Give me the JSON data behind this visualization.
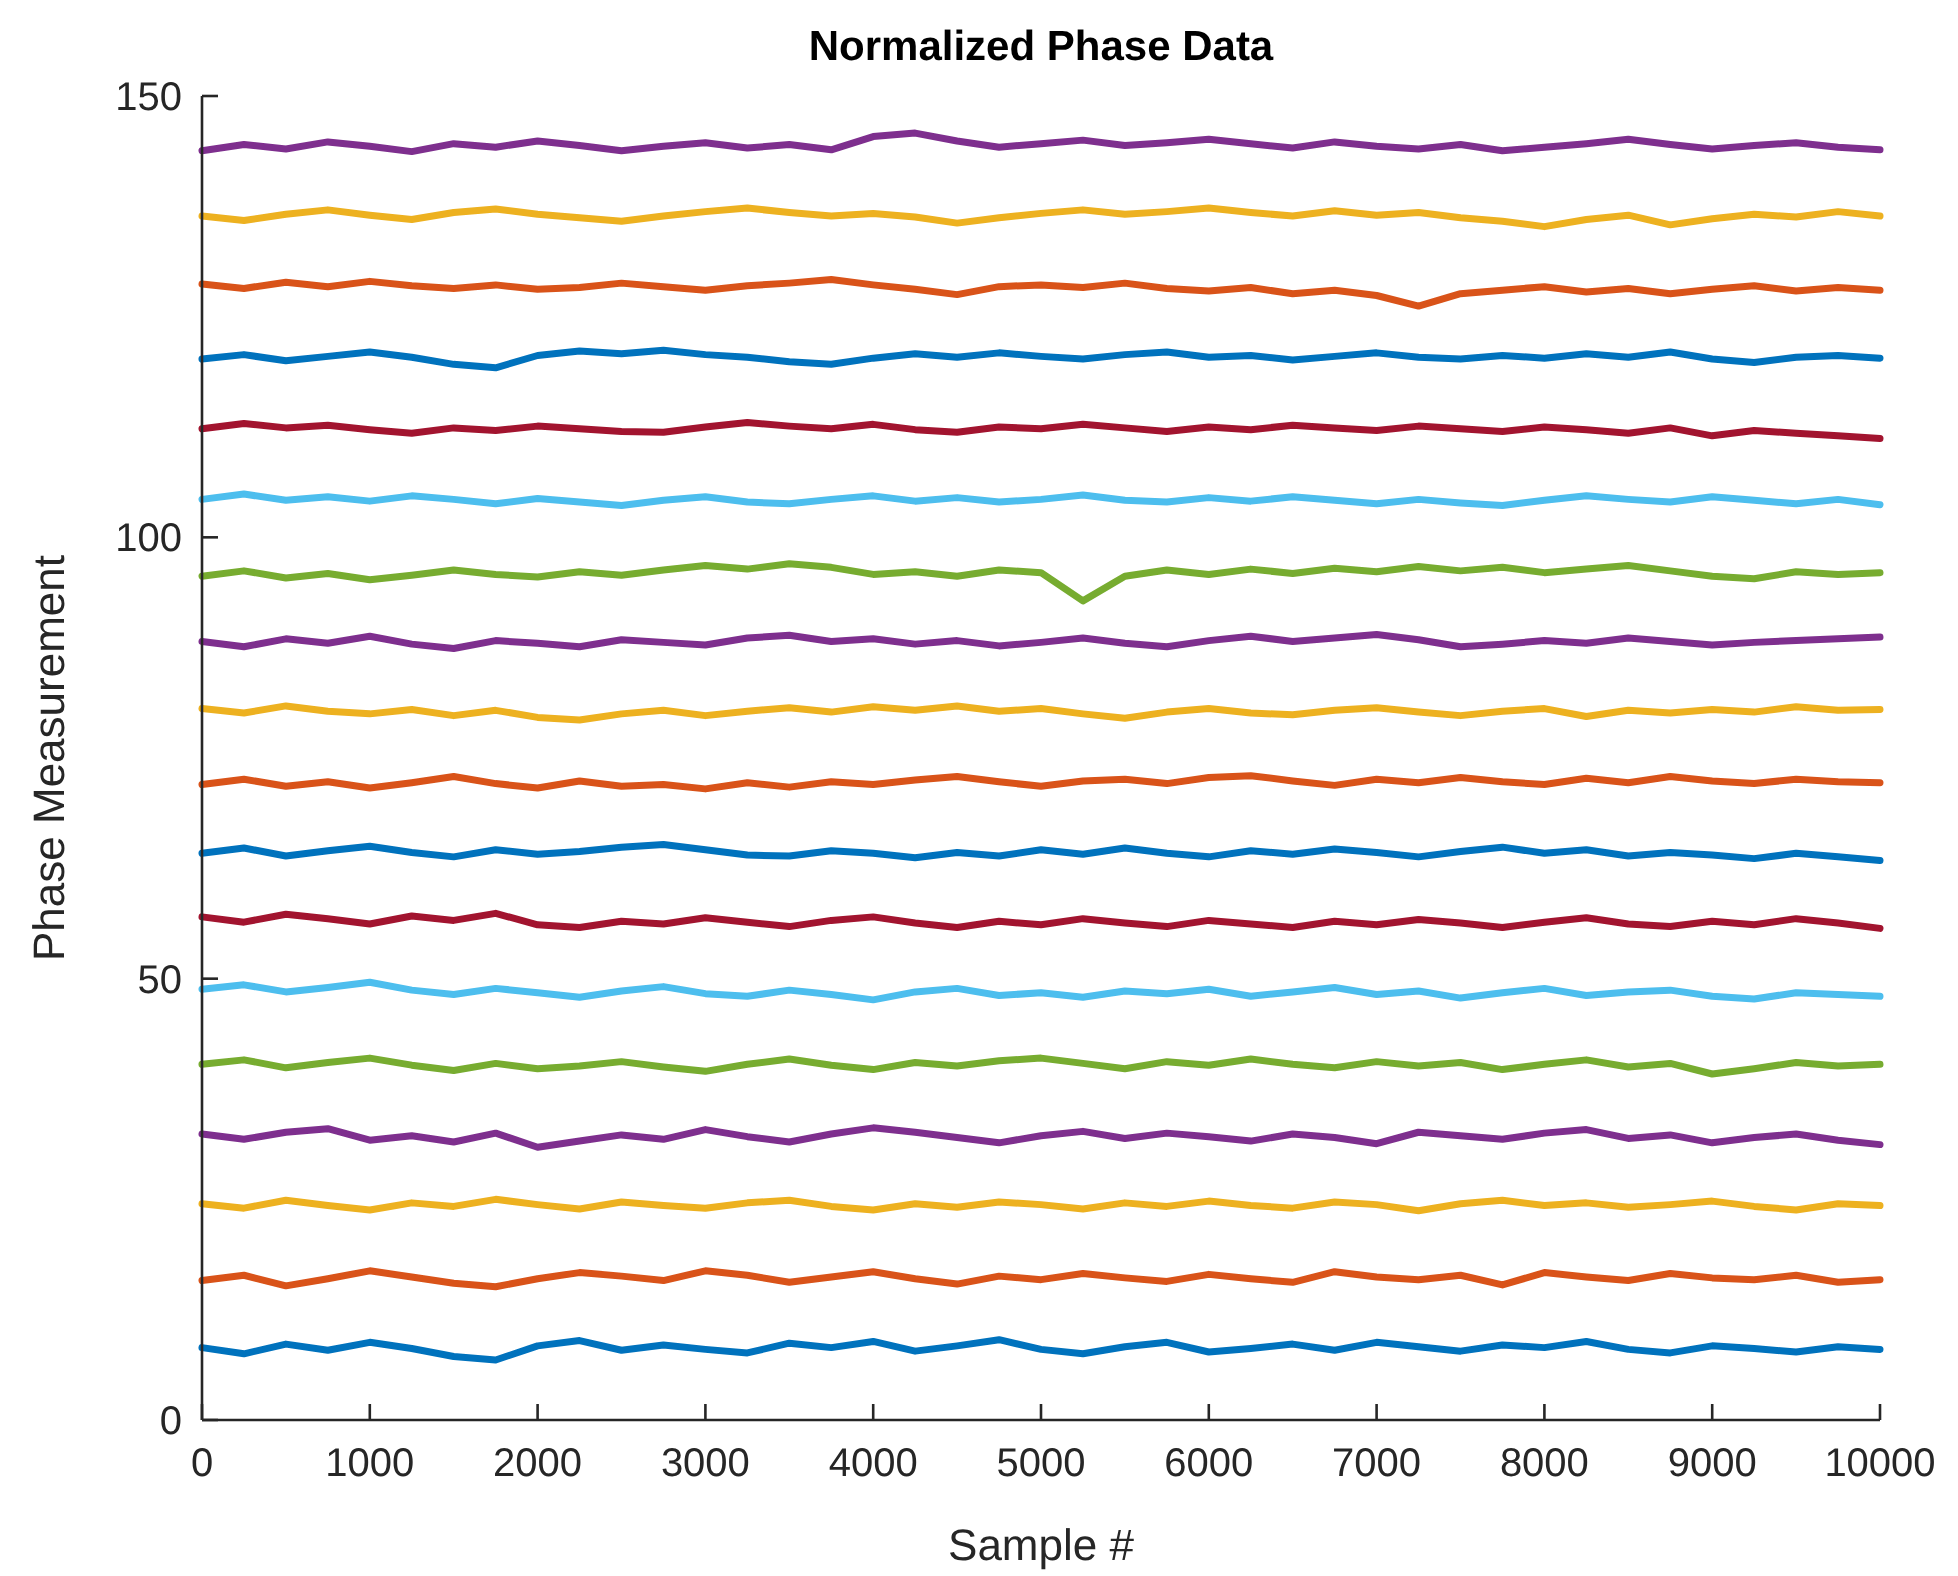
{
  "chart_data": {
    "type": "line",
    "title": "Normalized Phase Data",
    "xlabel": "Sample #",
    "ylabel": "Phase Measurement",
    "x": [
      0,
      250,
      500,
      750,
      1000,
      1250,
      1500,
      1750,
      2000,
      2250,
      2500,
      2750,
      3000,
      3250,
      3500,
      3750,
      4000,
      4250,
      4500,
      4750,
      5000,
      5250,
      5500,
      5750,
      6000,
      6250,
      6500,
      6750,
      7000,
      7250,
      7500,
      7750,
      8000,
      8250,
      8500,
      8750,
      9000,
      9250,
      9500,
      9750,
      10000
    ],
    "xlim": [
      0,
      10000
    ],
    "xticks": [
      0,
      1000,
      2000,
      3000,
      4000,
      5000,
      6000,
      7000,
      8000,
      9000,
      10000
    ],
    "ylim": [
      0,
      150
    ],
    "yticks": [
      0,
      50,
      100,
      150
    ],
    "series": [
      {
        "color": "#0072bd",
        "values": [
          8.2,
          7.5,
          8.6,
          7.9,
          8.8,
          8.1,
          7.2,
          6.8,
          8.4,
          9.0,
          7.9,
          8.5,
          8.0,
          7.6,
          8.7,
          8.2,
          8.9,
          7.8,
          8.4,
          9.1,
          8.0,
          7.5,
          8.3,
          8.8,
          7.7,
          8.1,
          8.6,
          7.9,
          8.8,
          8.3,
          7.8,
          8.5,
          8.2,
          8.9,
          8.0,
          7.6,
          8.4,
          8.1,
          7.7,
          8.3,
          8.0
        ]
      },
      {
        "color": "#d95319",
        "values": [
          15.8,
          16.4,
          15.2,
          16.0,
          16.9,
          16.2,
          15.5,
          15.1,
          16.0,
          16.7,
          16.3,
          15.8,
          16.9,
          16.4,
          15.6,
          16.2,
          16.8,
          16.0,
          15.4,
          16.3,
          15.9,
          16.6,
          16.1,
          15.7,
          16.5,
          16.0,
          15.6,
          16.8,
          16.2,
          15.9,
          16.4,
          15.3,
          16.7,
          16.2,
          15.8,
          16.6,
          16.1,
          15.9,
          16.4,
          15.6,
          15.9
        ]
      },
      {
        "color": "#edb120",
        "values": [
          24.5,
          24.0,
          24.9,
          24.3,
          23.8,
          24.6,
          24.2,
          25.0,
          24.4,
          23.9,
          24.7,
          24.3,
          24.0,
          24.6,
          24.9,
          24.2,
          23.8,
          24.5,
          24.1,
          24.7,
          24.4,
          23.9,
          24.6,
          24.2,
          24.8,
          24.3,
          24.0,
          24.7,
          24.4,
          23.7,
          24.5,
          24.9,
          24.3,
          24.6,
          24.1,
          24.4,
          24.8,
          24.2,
          23.8,
          24.5,
          24.3
        ]
      },
      {
        "color": "#7e2f8e",
        "values": [
          32.4,
          31.8,
          32.6,
          33.0,
          31.7,
          32.2,
          31.5,
          32.5,
          30.9,
          31.6,
          32.3,
          31.8,
          32.9,
          32.1,
          31.5,
          32.4,
          33.1,
          32.6,
          32.0,
          31.4,
          32.2,
          32.7,
          31.9,
          32.5,
          32.1,
          31.6,
          32.4,
          32.0,
          31.3,
          32.6,
          32.2,
          31.8,
          32.5,
          32.9,
          31.9,
          32.3,
          31.4,
          32.0,
          32.4,
          31.7,
          31.2
        ]
      },
      {
        "color": "#77ac30",
        "values": [
          40.3,
          40.8,
          39.9,
          40.5,
          41.0,
          40.2,
          39.6,
          40.4,
          39.8,
          40.1,
          40.6,
          40.0,
          39.5,
          40.3,
          40.9,
          40.2,
          39.7,
          40.5,
          40.1,
          40.7,
          41.0,
          40.4,
          39.8,
          40.6,
          40.2,
          40.9,
          40.3,
          39.9,
          40.6,
          40.1,
          40.5,
          39.7,
          40.3,
          40.8,
          40.0,
          40.4,
          39.2,
          39.8,
          40.5,
          40.1,
          40.3
        ]
      },
      {
        "color": "#4dbeee",
        "values": [
          48.8,
          49.3,
          48.5,
          49.0,
          49.6,
          48.7,
          48.2,
          48.9,
          48.4,
          47.9,
          48.6,
          49.1,
          48.3,
          48.0,
          48.7,
          48.2,
          47.6,
          48.5,
          48.9,
          48.1,
          48.4,
          47.9,
          48.6,
          48.3,
          48.8,
          48.0,
          48.5,
          49.0,
          48.2,
          48.6,
          47.8,
          48.4,
          48.9,
          48.1,
          48.5,
          48.7,
          48.0,
          47.7,
          48.4,
          48.2,
          48.0
        ]
      },
      {
        "color": "#a2142f",
        "values": [
          57.0,
          56.4,
          57.3,
          56.8,
          56.2,
          57.1,
          56.6,
          57.4,
          56.1,
          55.8,
          56.5,
          56.2,
          56.9,
          56.4,
          55.9,
          56.6,
          57.0,
          56.3,
          55.8,
          56.5,
          56.1,
          56.8,
          56.3,
          55.9,
          56.6,
          56.2,
          55.8,
          56.5,
          56.1,
          56.7,
          56.3,
          55.8,
          56.4,
          56.9,
          56.2,
          55.9,
          56.5,
          56.1,
          56.8,
          56.3,
          55.7
        ]
      },
      {
        "color": "#0072bd",
        "values": [
          64.2,
          64.8,
          63.9,
          64.5,
          65.0,
          64.3,
          63.8,
          64.6,
          64.1,
          64.4,
          64.9,
          65.2,
          64.6,
          64.0,
          63.9,
          64.5,
          64.2,
          63.7,
          64.3,
          63.9,
          64.6,
          64.1,
          64.8,
          64.2,
          63.8,
          64.5,
          64.1,
          64.7,
          64.3,
          63.8,
          64.4,
          64.9,
          64.2,
          64.6,
          63.9,
          64.3,
          64.0,
          63.6,
          64.2,
          63.8,
          63.4
        ]
      },
      {
        "color": "#d95319",
        "values": [
          72.0,
          72.6,
          71.8,
          72.3,
          71.6,
          72.2,
          72.9,
          72.1,
          71.6,
          72.4,
          71.8,
          72.0,
          71.5,
          72.2,
          71.7,
          72.3,
          72.0,
          72.5,
          72.9,
          72.3,
          71.8,
          72.4,
          72.6,
          72.1,
          72.8,
          73.0,
          72.4,
          71.9,
          72.6,
          72.2,
          72.8,
          72.3,
          72.0,
          72.7,
          72.2,
          72.9,
          72.4,
          72.1,
          72.6,
          72.3,
          72.2
        ]
      },
      {
        "color": "#edb120",
        "values": [
          80.6,
          80.1,
          80.9,
          80.3,
          80.0,
          80.5,
          79.8,
          80.4,
          79.6,
          79.3,
          80.0,
          80.4,
          79.8,
          80.3,
          80.7,
          80.2,
          80.8,
          80.4,
          80.9,
          80.3,
          80.6,
          80.0,
          79.5,
          80.2,
          80.6,
          80.1,
          79.9,
          80.4,
          80.7,
          80.2,
          79.8,
          80.3,
          80.6,
          79.7,
          80.4,
          80.1,
          80.5,
          80.2,
          80.8,
          80.4,
          80.5
        ]
      },
      {
        "color": "#7e2f8e",
        "values": [
          88.2,
          87.6,
          88.5,
          88.0,
          88.8,
          87.9,
          87.4,
          88.3,
          88.0,
          87.6,
          88.4,
          88.1,
          87.8,
          88.6,
          88.9,
          88.2,
          88.5,
          87.9,
          88.3,
          87.7,
          88.1,
          88.6,
          88.0,
          87.6,
          88.3,
          88.8,
          88.2,
          88.6,
          89.0,
          88.4,
          87.6,
          87.9,
          88.3,
          88.0,
          88.6,
          88.2,
          87.8,
          88.1,
          88.3,
          88.5,
          88.7
        ]
      },
      {
        "color": "#77ac30",
        "values": [
          95.6,
          96.2,
          95.4,
          95.9,
          95.2,
          95.7,
          96.3,
          95.8,
          95.5,
          96.1,
          95.7,
          96.3,
          96.8,
          96.4,
          97.0,
          96.6,
          95.8,
          96.1,
          95.6,
          96.3,
          96.0,
          92.8,
          95.6,
          96.3,
          95.8,
          96.4,
          95.9,
          96.5,
          96.1,
          96.7,
          96.2,
          96.6,
          96.0,
          96.4,
          96.8,
          96.2,
          95.6,
          95.3,
          96.1,
          95.8,
          96.0
        ]
      },
      {
        "color": "#4dbeee",
        "values": [
          104.3,
          104.9,
          104.2,
          104.6,
          104.1,
          104.7,
          104.3,
          103.8,
          104.4,
          104.0,
          103.6,
          104.2,
          104.6,
          104.0,
          103.8,
          104.3,
          104.7,
          104.1,
          104.5,
          104.0,
          104.3,
          104.8,
          104.2,
          104.0,
          104.5,
          104.1,
          104.6,
          104.2,
          103.8,
          104.3,
          103.9,
          103.6,
          104.2,
          104.7,
          104.3,
          104.0,
          104.6,
          104.2,
          103.8,
          104.3,
          103.7
        ]
      },
      {
        "color": "#a2142f",
        "values": [
          112.3,
          112.9,
          112.4,
          112.7,
          112.2,
          111.8,
          112.4,
          112.1,
          112.6,
          112.3,
          112.0,
          111.9,
          112.5,
          113.0,
          112.6,
          112.3,
          112.8,
          112.2,
          111.9,
          112.5,
          112.3,
          112.8,
          112.4,
          112.0,
          112.5,
          112.2,
          112.7,
          112.4,
          112.1,
          112.6,
          112.3,
          112.0,
          112.5,
          112.2,
          111.8,
          112.4,
          111.5,
          112.1,
          111.8,
          111.5,
          111.2
        ]
      },
      {
        "color": "#0072bd",
        "values": [
          120.2,
          120.7,
          120.0,
          120.5,
          121.0,
          120.4,
          119.6,
          119.2,
          120.6,
          121.1,
          120.8,
          121.2,
          120.7,
          120.4,
          119.9,
          119.6,
          120.3,
          120.8,
          120.4,
          120.9,
          120.5,
          120.2,
          120.7,
          121.0,
          120.4,
          120.6,
          120.1,
          120.5,
          120.9,
          120.4,
          120.2,
          120.6,
          120.3,
          120.8,
          120.4,
          121.0,
          120.2,
          119.8,
          120.4,
          120.6,
          120.3
        ]
      },
      {
        "color": "#d95319",
        "values": [
          128.7,
          128.2,
          128.9,
          128.4,
          129.0,
          128.5,
          128.2,
          128.6,
          128.1,
          128.3,
          128.8,
          128.4,
          128.0,
          128.5,
          128.8,
          129.2,
          128.6,
          128.1,
          127.5,
          128.4,
          128.6,
          128.3,
          128.8,
          128.2,
          127.9,
          128.3,
          127.6,
          128.0,
          127.4,
          126.2,
          127.6,
          128.0,
          128.4,
          127.8,
          128.2,
          127.6,
          128.1,
          128.5,
          127.9,
          128.3,
          128.0
        ]
      },
      {
        "color": "#edb120",
        "values": [
          136.4,
          135.9,
          136.6,
          137.1,
          136.5,
          136.0,
          136.8,
          137.2,
          136.6,
          136.2,
          135.8,
          136.4,
          136.9,
          137.3,
          136.8,
          136.4,
          136.7,
          136.3,
          135.6,
          136.2,
          136.7,
          137.1,
          136.6,
          136.9,
          137.3,
          136.8,
          136.4,
          137.0,
          136.5,
          136.8,
          136.2,
          135.8,
          135.2,
          136.0,
          136.5,
          135.4,
          136.1,
          136.6,
          136.3,
          136.9,
          136.4
        ]
      },
      {
        "color": "#7e2f8e",
        "values": [
          143.8,
          144.5,
          144.0,
          144.8,
          144.3,
          143.7,
          144.6,
          144.2,
          144.9,
          144.4,
          143.8,
          144.3,
          144.7,
          144.1,
          144.5,
          143.9,
          145.4,
          145.8,
          144.9,
          144.2,
          144.6,
          145.0,
          144.4,
          144.7,
          145.1,
          144.6,
          144.1,
          144.8,
          144.3,
          144.0,
          144.5,
          143.8,
          144.2,
          144.6,
          145.1,
          144.5,
          144.0,
          144.4,
          144.7,
          144.2,
          143.9
        ]
      }
    ]
  }
}
